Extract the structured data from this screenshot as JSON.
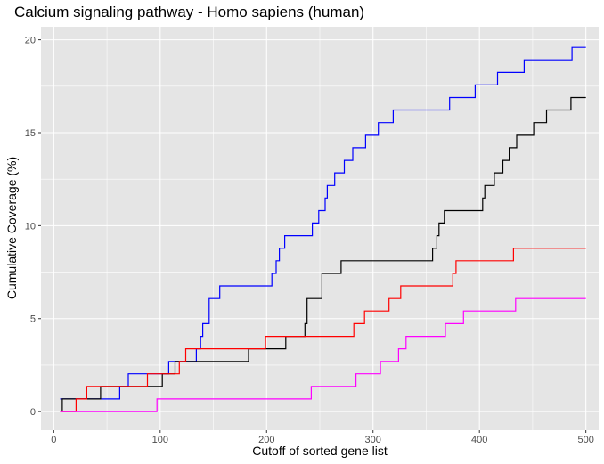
{
  "chart_data": {
    "type": "line",
    "title": "Calcium signaling pathway - Homo sapiens (human)",
    "xlabel": "Cutoff of sorted gene list",
    "ylabel": "Cumulative Coverage (%)",
    "xlim": [
      -12,
      512
    ],
    "ylim": [
      -1,
      20.7
    ],
    "xticks": [
      0,
      100,
      200,
      300,
      400,
      500
    ],
    "yticks": [
      0,
      5,
      10,
      15,
      20
    ],
    "grid": true,
    "legend": "none",
    "series": [
      {
        "color": "#0000ff",
        "points": [
          [
            6,
            0.68
          ],
          [
            62,
            0.68
          ],
          [
            62,
            1.35
          ],
          [
            70,
            1.35
          ],
          [
            70,
            2.03
          ],
          [
            108,
            2.03
          ],
          [
            108,
            2.7
          ],
          [
            134,
            2.7
          ],
          [
            134,
            3.38
          ],
          [
            138,
            3.38
          ],
          [
            138,
            4.05
          ],
          [
            140,
            4.05
          ],
          [
            140,
            4.73
          ],
          [
            146,
            4.73
          ],
          [
            146,
            6.08
          ],
          [
            156,
            6.08
          ],
          [
            156,
            6.76
          ],
          [
            205,
            6.76
          ],
          [
            205,
            7.43
          ],
          [
            209,
            7.43
          ],
          [
            209,
            8.11
          ],
          [
            212,
            8.11
          ],
          [
            212,
            8.78
          ],
          [
            217,
            8.78
          ],
          [
            217,
            9.46
          ],
          [
            243,
            9.46
          ],
          [
            243,
            10.14
          ],
          [
            249,
            10.14
          ],
          [
            249,
            10.81
          ],
          [
            255,
            10.81
          ],
          [
            255,
            11.49
          ],
          [
            257,
            11.49
          ],
          [
            257,
            12.16
          ],
          [
            264,
            12.16
          ],
          [
            264,
            12.84
          ],
          [
            273,
            12.84
          ],
          [
            273,
            13.51
          ],
          [
            281,
            13.51
          ],
          [
            281,
            14.19
          ],
          [
            293,
            14.19
          ],
          [
            293,
            14.86
          ],
          [
            305,
            14.86
          ],
          [
            305,
            15.54
          ],
          [
            319,
            15.54
          ],
          [
            319,
            16.22
          ],
          [
            372,
            16.22
          ],
          [
            372,
            16.89
          ],
          [
            396,
            16.89
          ],
          [
            396,
            17.57
          ],
          [
            417,
            17.57
          ],
          [
            417,
            18.24
          ],
          [
            442,
            18.24
          ],
          [
            442,
            18.92
          ],
          [
            487,
            18.92
          ],
          [
            487,
            19.59
          ],
          [
            500,
            19.59
          ]
        ]
      },
      {
        "color": "#000000",
        "points": [
          [
            8,
            0
          ],
          [
            8,
            0.68
          ],
          [
            44,
            0.68
          ],
          [
            44,
            1.35
          ],
          [
            102,
            1.35
          ],
          [
            102,
            2.03
          ],
          [
            114,
            2.03
          ],
          [
            114,
            2.7
          ],
          [
            183,
            2.7
          ],
          [
            183,
            3.38
          ],
          [
            218,
            3.38
          ],
          [
            218,
            4.05
          ],
          [
            236,
            4.05
          ],
          [
            236,
            4.73
          ],
          [
            238,
            4.73
          ],
          [
            238,
            6.08
          ],
          [
            252,
            6.08
          ],
          [
            252,
            7.43
          ],
          [
            270,
            7.43
          ],
          [
            270,
            8.11
          ],
          [
            356,
            8.11
          ],
          [
            356,
            8.78
          ],
          [
            360,
            8.78
          ],
          [
            360,
            9.46
          ],
          [
            362,
            9.46
          ],
          [
            362,
            10.14
          ],
          [
            367,
            10.14
          ],
          [
            367,
            10.81
          ],
          [
            403,
            10.81
          ],
          [
            403,
            11.49
          ],
          [
            405,
            11.49
          ],
          [
            405,
            12.16
          ],
          [
            414,
            12.16
          ],
          [
            414,
            12.84
          ],
          [
            422,
            12.84
          ],
          [
            422,
            13.51
          ],
          [
            428,
            13.51
          ],
          [
            428,
            14.19
          ],
          [
            435,
            14.19
          ],
          [
            435,
            14.86
          ],
          [
            451,
            14.86
          ],
          [
            451,
            15.54
          ],
          [
            463,
            15.54
          ],
          [
            463,
            16.22
          ],
          [
            486,
            16.22
          ],
          [
            486,
            16.89
          ],
          [
            500,
            16.89
          ]
        ]
      },
      {
        "color": "#ff0000",
        "points": [
          [
            6,
            0
          ],
          [
            21,
            0
          ],
          [
            21,
            0.68
          ],
          [
            31,
            0.68
          ],
          [
            31,
            1.35
          ],
          [
            88,
            1.35
          ],
          [
            88,
            2.03
          ],
          [
            118,
            2.03
          ],
          [
            118,
            2.7
          ],
          [
            124,
            2.7
          ],
          [
            124,
            3.38
          ],
          [
            199,
            3.38
          ],
          [
            199,
            4.05
          ],
          [
            282,
            4.05
          ],
          [
            282,
            4.73
          ],
          [
            292,
            4.73
          ],
          [
            292,
            5.41
          ],
          [
            315,
            5.41
          ],
          [
            315,
            6.08
          ],
          [
            326,
            6.08
          ],
          [
            326,
            6.76
          ],
          [
            375,
            6.76
          ],
          [
            375,
            7.43
          ],
          [
            378,
            7.43
          ],
          [
            378,
            8.11
          ],
          [
            432,
            8.11
          ],
          [
            432,
            8.78
          ],
          [
            500,
            8.78
          ]
        ]
      },
      {
        "color": "#ff00ff",
        "points": [
          [
            6,
            0
          ],
          [
            97,
            0
          ],
          [
            97,
            0.68
          ],
          [
            242,
            0.68
          ],
          [
            242,
            1.35
          ],
          [
            284,
            1.35
          ],
          [
            284,
            2.03
          ],
          [
            307,
            2.03
          ],
          [
            307,
            2.7
          ],
          [
            324,
            2.7
          ],
          [
            324,
            3.38
          ],
          [
            331,
            3.38
          ],
          [
            331,
            4.05
          ],
          [
            368,
            4.05
          ],
          [
            368,
            4.73
          ],
          [
            385,
            4.73
          ],
          [
            385,
            5.41
          ],
          [
            434,
            5.41
          ],
          [
            434,
            6.08
          ],
          [
            500,
            6.08
          ]
        ]
      }
    ]
  }
}
